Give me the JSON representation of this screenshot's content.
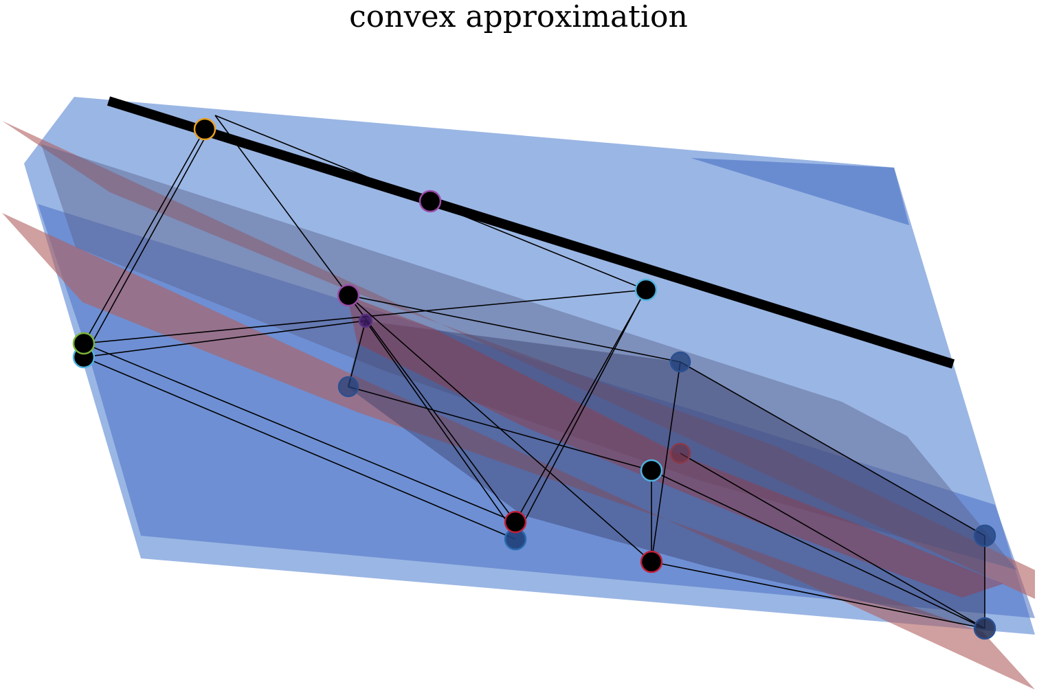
{
  "title": "convex approximation",
  "colors": {
    "plane_blue": "#6f97d8",
    "plane_blue_dark": "#4a6fc4",
    "plane_red": "#b05f5f",
    "edge": "#000000",
    "hull_dark": "#3a3f6a"
  },
  "nodes": [
    {
      "name": "node-orange",
      "ring": "#e8a020",
      "front": true
    },
    {
      "name": "node-purple-top",
      "ring": "#9b4aa8",
      "front": true
    },
    {
      "name": "node-magenta",
      "ring": "#9b4aa8",
      "front": true
    },
    {
      "name": "node-cyan-right",
      "ring": "#4fb3e0",
      "front": true
    },
    {
      "name": "node-green",
      "ring": "#7ab33a",
      "front": true
    },
    {
      "name": "node-cyan-left",
      "ring": "#4fb3e0",
      "front": false
    },
    {
      "name": "node-crimson-mid",
      "ring": "#c0203a",
      "front": true
    },
    {
      "name": "node-blue-mid",
      "ring": "#2a6ab0",
      "front": false
    },
    {
      "name": "node-cyan-center",
      "ring": "#4fb3e0",
      "front": true
    },
    {
      "name": "node-crimson-low",
      "ring": "#c0203a",
      "front": true
    },
    {
      "name": "node-hidden-a",
      "ring": "#2a5090",
      "front": false
    },
    {
      "name": "node-hidden-b",
      "ring": "#2a5090",
      "front": false
    },
    {
      "name": "node-hidden-c",
      "ring": "#8a3a4a",
      "front": false
    },
    {
      "name": "node-hidden-d",
      "ring": "#2a5090",
      "front": false
    },
    {
      "name": "node-hidden-e",
      "ring": "#2a5090",
      "front": false
    },
    {
      "name": "node-hidden-f",
      "ring": "#5a3080",
      "front": false
    }
  ]
}
